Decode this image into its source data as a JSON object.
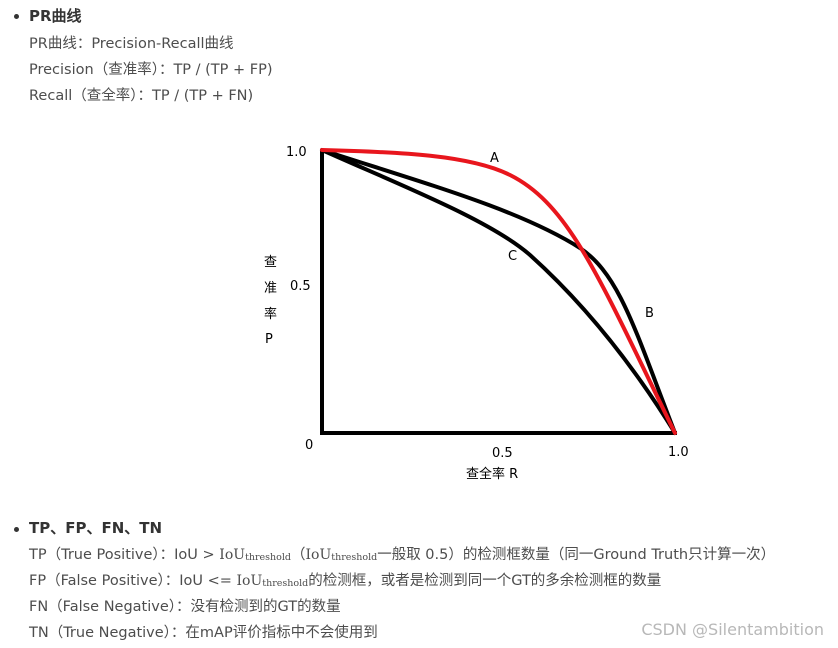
{
  "section1": {
    "heading": "PR曲线",
    "line1": "PR曲线：Precision-Recall曲线",
    "line2": "Precision（查准率）：TP / (TP + FP)",
    "line3": "Recall（查全率）：TP / (TP + FN)"
  },
  "diagram": {
    "y_tick_top": "1.0",
    "y_tick_mid": "0.5",
    "origin": "0",
    "x_tick_mid": "0.5",
    "x_tick_end": "1.0",
    "ylabel_chars": [
      "查",
      "准",
      "率",
      "P"
    ],
    "xlabel": "查全率 R",
    "curve_labels": {
      "a": "A",
      "b": "B",
      "c": "C"
    },
    "colors": {
      "axis": "#000000",
      "curve_a": "#e8161d",
      "curve_bc": "#000000"
    }
  },
  "section2": {
    "heading": "TP、FP、FN、TN",
    "tp": {
      "prefix": "TP（True Positive）：IoU > ",
      "iou": "IoU",
      "sub": "threshold",
      "mid": "（",
      "iou2": "IoU",
      "sub2": "threshold",
      "suffix": "一般取 0.5）的检测框数量（同一Ground Truth只计算一次）"
    },
    "fp": {
      "prefix": "FP（False Positive）：IoU <= ",
      "iou": "IoU",
      "sub": "threshold",
      "suffix": "的检测框，或者是检测到同一个GT的多余检测框的数量"
    },
    "fn": "FN（False Negative）：没有检测到的GT的数量",
    "tn": "TN（True Negative）：在mAP评价指标中不会使用到"
  },
  "watermark": "CSDN @Silentambition"
}
